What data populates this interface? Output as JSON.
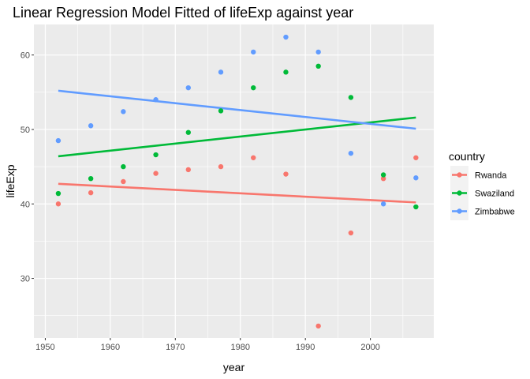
{
  "chart_data": {
    "type": "scatter",
    "title": "Linear Regression Model Fitted of lifeExp against year",
    "xlabel": "year",
    "ylabel": "lifeExp",
    "xlim": [
      1948.25,
      2009.75
    ],
    "ylim": [
      22.0,
      64.1
    ],
    "x_ticks": [
      1950,
      1960,
      1970,
      1980,
      1990,
      2000
    ],
    "y_ticks": [
      30,
      40,
      50,
      60
    ],
    "grid": true,
    "legend": {
      "title": "country",
      "placement": "right"
    },
    "x": [
      1952,
      1957,
      1962,
      1967,
      1972,
      1977,
      1982,
      1987,
      1992,
      1997,
      2002,
      2007
    ],
    "series": [
      {
        "name": "Rwanda",
        "color": "#F8766D",
        "values": [
          40.0,
          41.5,
          43.0,
          44.1,
          44.6,
          45.0,
          46.2,
          44.0,
          23.6,
          36.1,
          43.4,
          46.2
        ],
        "fit": [
          42.7,
          40.2
        ]
      },
      {
        "name": "Swaziland",
        "color": "#00BA38",
        "values": [
          41.4,
          43.4,
          45.0,
          46.6,
          49.6,
          52.5,
          55.6,
          57.7,
          58.5,
          54.3,
          43.9,
          39.6
        ],
        "fit": [
          46.4,
          51.6
        ]
      },
      {
        "name": "Zimbabwe",
        "color": "#619CFF",
        "values": [
          48.5,
          50.5,
          52.4,
          54.0,
          55.6,
          57.7,
          60.4,
          62.4,
          60.4,
          46.8,
          40.0,
          43.5
        ],
        "fit": [
          55.2,
          50.1
        ]
      }
    ]
  }
}
